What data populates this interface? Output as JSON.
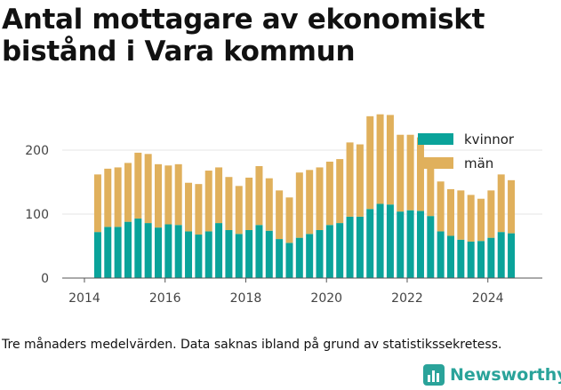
{
  "title": "Antal mottagare av ekonomiskt bistånd i Vara kommun",
  "footnote": "Tre månaders medelvärden. Data saknas ibland på grund av statistikssekretess.",
  "brand": {
    "name": "Newsworthy",
    "icon": "newsworthy-logo-icon"
  },
  "colors": {
    "kvinnor": "#0aa39a",
    "man": "#e0b05c",
    "grid": "#e6e6e6",
    "axis": "#555555"
  },
  "chart_data": {
    "type": "bar",
    "stacked": true,
    "title": "Antal mottagare av ekonomiskt bistånd i Vara kommun",
    "x_ticks": [
      "2014",
      "2016",
      "2018",
      "2020",
      "2022",
      "2024"
    ],
    "x_range": [
      2013.45,
      2025.35
    ],
    "y_ticks": [
      "0",
      "100",
      "200"
    ],
    "ylim": [
      0,
      275
    ],
    "grid": true,
    "legend_position": "top-right",
    "x": [
      2014.33,
      2014.58,
      2014.83,
      2015.08,
      2015.33,
      2015.58,
      2015.83,
      2016.08,
      2016.33,
      2016.58,
      2016.83,
      2017.08,
      2017.33,
      2017.58,
      2017.83,
      2018.08,
      2018.33,
      2018.58,
      2018.83,
      2019.08,
      2019.33,
      2019.58,
      2019.83,
      2020.08,
      2020.33,
      2020.58,
      2020.83,
      2021.08,
      2021.33,
      2021.58,
      2021.83,
      2022.08,
      2022.33,
      2022.58,
      2022.83,
      2023.08,
      2023.33,
      2023.58,
      2023.83,
      2024.08,
      2024.33,
      2024.58
    ],
    "series": [
      {
        "name": "kvinnor",
        "values": [
          72,
          80,
          80,
          88,
          93,
          86,
          79,
          84,
          83,
          73,
          68,
          73,
          86,
          75,
          69,
          75,
          83,
          74,
          61,
          55,
          63,
          69,
          75,
          83,
          86,
          96,
          96,
          108,
          116,
          115,
          104,
          106,
          105,
          97,
          73,
          66,
          60,
          57,
          58,
          63,
          72,
          70
        ]
      },
      {
        "name": "män",
        "values": [
          90,
          91,
          93,
          92,
          103,
          108,
          99,
          92,
          95,
          76,
          79,
          95,
          87,
          83,
          75,
          82,
          92,
          82,
          76,
          71,
          102,
          100,
          98,
          99,
          100,
          116,
          113,
          145,
          140,
          140,
          120,
          118,
          115,
          80,
          78,
          73,
          77,
          73,
          66,
          74,
          90,
          83
        ]
      }
    ]
  }
}
